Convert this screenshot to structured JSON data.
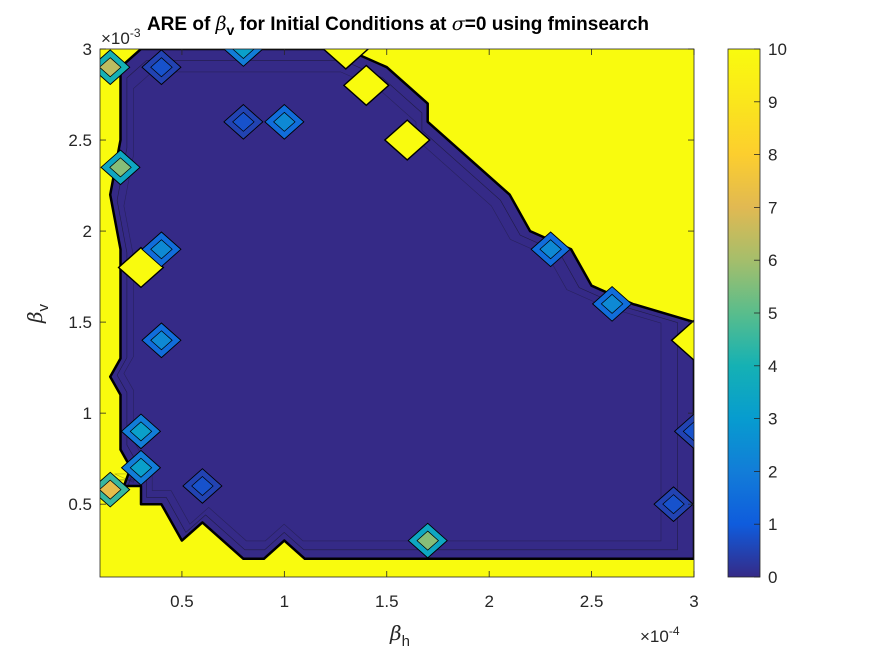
{
  "chart_data": {
    "type": "heatmap",
    "title": {
      "part1": "ARE of ",
      "beta_symbol": "β",
      "beta_subscript": "v",
      "part2": " for Initial Conditions at ",
      "sigma_symbol": "σ",
      "part3": "=0 using fminsearch"
    },
    "xlabel": {
      "symbol": "β",
      "subscript": "h"
    },
    "ylabel": {
      "symbol": "β",
      "subscript": "v"
    },
    "x_exponent": {
      "base": "×10",
      "power": "-4"
    },
    "y_exponent": {
      "base": "×10",
      "power": "-3"
    },
    "xlim": [
      0.1,
      3.0
    ],
    "ylim": [
      0.1,
      3.0
    ],
    "xticks": [
      "0.5",
      "1",
      "1.5",
      "2",
      "2.5",
      "3"
    ],
    "yticks": [
      "0.5",
      "1",
      "1.5",
      "2",
      "2.5",
      "3"
    ],
    "colorbar": {
      "range": [
        0,
        10
      ],
      "ticks": [
        "0",
        "1",
        "2",
        "3",
        "4",
        "5",
        "6",
        "7",
        "8",
        "9",
        "10"
      ],
      "colormap": "parula"
    },
    "background_value": 10,
    "valid_region_value": 0,
    "valid_region_outline": [
      [
        0.2,
        2.9
      ],
      [
        0.3,
        3.0
      ],
      [
        1.3,
        3.0
      ],
      [
        1.5,
        2.9
      ],
      [
        1.7,
        2.7
      ],
      [
        1.7,
        2.6
      ],
      [
        2.1,
        2.2
      ],
      [
        2.2,
        2.0
      ],
      [
        2.4,
        1.9
      ],
      [
        2.5,
        1.7
      ],
      [
        2.7,
        1.6
      ],
      [
        3.0,
        1.5
      ],
      [
        3.0,
        0.2
      ],
      [
        1.1,
        0.2
      ],
      [
        1.0,
        0.3
      ],
      [
        0.9,
        0.2
      ],
      [
        0.8,
        0.2
      ],
      [
        0.6,
        0.4
      ],
      [
        0.5,
        0.3
      ],
      [
        0.4,
        0.5
      ],
      [
        0.3,
        0.5
      ],
      [
        0.3,
        0.6
      ],
      [
        0.1,
        0.6
      ],
      [
        0.2,
        0.55
      ],
      [
        0.25,
        0.7
      ],
      [
        0.2,
        0.8
      ],
      [
        0.2,
        1.1
      ],
      [
        0.15,
        1.2
      ],
      [
        0.2,
        1.3
      ],
      [
        0.2,
        1.9
      ],
      [
        0.15,
        2.2
      ],
      [
        0.2,
        2.5
      ],
      [
        0.2,
        2.9
      ]
    ],
    "features": [
      {
        "x": 0.3,
        "y": 1.8,
        "value": 10
      },
      {
        "x": 1.4,
        "y": 2.8,
        "value": 10
      },
      {
        "x": 1.6,
        "y": 2.5,
        "value": 10
      },
      {
        "x": 1.3,
        "y": 3.0,
        "value": 10
      },
      {
        "x": 3.0,
        "y": 1.4,
        "value": 10
      },
      {
        "x": 0.4,
        "y": 2.9,
        "value": 0.5
      },
      {
        "x": 0.8,
        "y": 2.6,
        "value": 0.5
      },
      {
        "x": 1.0,
        "y": 2.6,
        "value": 1.5
      },
      {
        "x": 0.8,
        "y": 3.0,
        "value": 2
      },
      {
        "x": 0.4,
        "y": 1.9,
        "value": 1.5
      },
      {
        "x": 0.4,
        "y": 1.4,
        "value": 1.5
      },
      {
        "x": 0.6,
        "y": 0.6,
        "value": 0.5
      },
      {
        "x": 1.7,
        "y": 0.3,
        "value": 3.5
      },
      {
        "x": 2.9,
        "y": 0.5,
        "value": 0.5
      },
      {
        "x": 3.0,
        "y": 0.9,
        "value": 0.5
      },
      {
        "x": 2.3,
        "y": 1.9,
        "value": 1.5
      },
      {
        "x": 2.6,
        "y": 1.6,
        "value": 1.5
      },
      {
        "x": 0.2,
        "y": 2.35,
        "value": 3.5
      },
      {
        "x": 0.15,
        "y": 2.9,
        "value": 4
      },
      {
        "x": 0.3,
        "y": 0.9,
        "value": 2
      },
      {
        "x": 0.3,
        "y": 0.7,
        "value": 2
      },
      {
        "x": 0.15,
        "y": 0.58,
        "value": 4.5
      }
    ]
  }
}
